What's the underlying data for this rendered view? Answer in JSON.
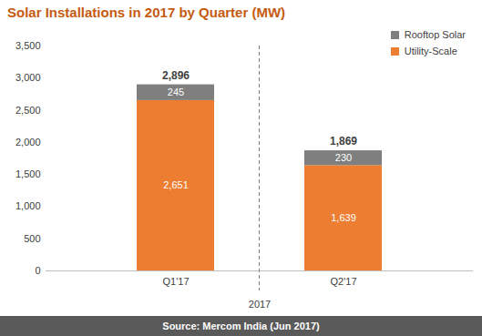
{
  "chart_data": {
    "type": "bar",
    "title": "Solar Installations in 2017 by Quarter (MW)",
    "caption": "Source: Mercom India (Jun 2017)",
    "x_label": "2017",
    "categories": [
      "Q1'17",
      "Q2'17"
    ],
    "series": [
      {
        "name": "Utility-Scale",
        "color": "#ED7D31",
        "values": [
          2651,
          1639
        ],
        "value_labels": [
          "2,651",
          "1,639"
        ]
      },
      {
        "name": "Rooftop Solar",
        "color": "#7F7F7F",
        "values": [
          245,
          230
        ]
      }
    ],
    "totals": [
      2896,
      1869
    ],
    "total_labels": [
      "2,896",
      "1,869"
    ],
    "ylim": [
      0,
      3500
    ],
    "yticks": [
      0,
      500,
      {
        "value": 1000,
        "label": "1,000"
      },
      {
        "value": 1500,
        "label": "1,500"
      },
      {
        "value": 2000,
        "label": "2,000"
      },
      {
        "value": 2500,
        "label": "2,500"
      },
      {
        "value": 3000,
        "label": "3,000"
      },
      {
        "value": 3500,
        "label": "3,500"
      }
    ],
    "stacked": true,
    "data_labels": true,
    "legend": "top-right",
    "grid": false
  }
}
